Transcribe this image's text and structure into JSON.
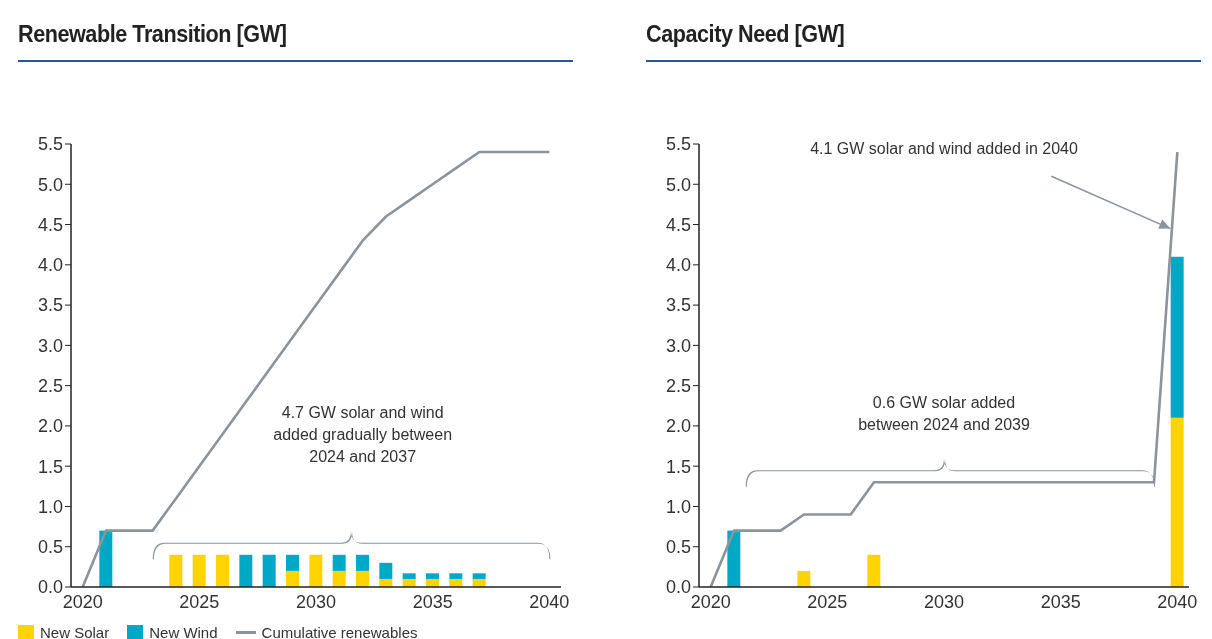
{
  "chart_data": [
    {
      "type": "bar",
      "title": "Renewable Transition [GW]",
      "stacked": true,
      "x": [
        2020,
        2021,
        2022,
        2023,
        2024,
        2025,
        2026,
        2027,
        2028,
        2029,
        2030,
        2031,
        2032,
        2033,
        2034,
        2035,
        2036,
        2037,
        2038,
        2039,
        2040
      ],
      "series": [
        {
          "name": "New Solar",
          "color": "#ffd400",
          "values": [
            null,
            null,
            null,
            null,
            0.4,
            0.4,
            0.4,
            null,
            null,
            0.2,
            0.4,
            0.2,
            0.2,
            0.1,
            0.1,
            0.1,
            0.1,
            0.1,
            null,
            null,
            null
          ]
        },
        {
          "name": "New Wind",
          "color": "#00a8c8",
          "values": [
            null,
            0.7,
            null,
            null,
            null,
            null,
            null,
            0.4,
            0.4,
            0.2,
            null,
            0.2,
            0.2,
            0.2,
            0.07,
            0.07,
            0.07,
            0.07,
            null,
            null,
            null
          ]
        },
        {
          "name": "Cumulative renewables",
          "type": "line",
          "color": "#8c9399",
          "values": [
            0,
            0.7,
            0.7,
            0.7,
            1.1,
            1.5,
            1.9,
            2.3,
            2.7,
            3.1,
            3.5,
            3.9,
            4.3,
            4.6,
            4.8,
            5.0,
            5.2,
            5.4,
            5.4,
            5.4,
            5.4
          ]
        }
      ],
      "xlim": [
        2019.5,
        2040.5
      ],
      "xticks": [
        2020,
        2025,
        2030,
        2035,
        2040
      ],
      "ylim": [
        0,
        5.5
      ],
      "yticks": [
        {
          "value": 0,
          "label": "0.0"
        },
        0.5,
        {
          "value": 1,
          "label": "1.0"
        },
        1.5,
        {
          "value": 2,
          "label": "2.0"
        },
        2.5,
        {
          "value": 3,
          "label": "3.0"
        },
        3.5,
        {
          "value": 4,
          "label": "4.0"
        },
        4.5,
        {
          "value": 5,
          "label": "5.0"
        },
        5.5
      ],
      "grid": false,
      "legend": "bottom",
      "marker": "none",
      "annotations": [
        "4.7 GW solar and wind\nadded gradually between\n2024 and 2037"
      ]
    },
    {
      "type": "bar",
      "title": "Capacity Need [GW]",
      "stacked": true,
      "x": [
        2020,
        2021,
        2022,
        2023,
        2024,
        2025,
        2026,
        2027,
        2028,
        2029,
        2030,
        2031,
        2032,
        2033,
        2034,
        2035,
        2036,
        2037,
        2038,
        2039,
        2040
      ],
      "series": [
        {
          "color": "#ffd400",
          "values": [
            null,
            null,
            null,
            null,
            0.2,
            null,
            null,
            0.4,
            null,
            null,
            null,
            null,
            null,
            null,
            null,
            null,
            null,
            null,
            null,
            null,
            2.1
          ]
        },
        {
          "color": "#00a8c8",
          "values": [
            null,
            0.7,
            null,
            null,
            null,
            null,
            null,
            null,
            null,
            null,
            null,
            null,
            null,
            null,
            null,
            null,
            null,
            null,
            null,
            null,
            2.0
          ]
        },
        {
          "type": "line",
          "color": "#8c9399",
          "values": [
            0,
            0.7,
            0.7,
            0.7,
            0.9,
            0.9,
            0.9,
            1.3,
            1.3,
            1.3,
            1.3,
            1.3,
            1.3,
            1.3,
            1.3,
            1.3,
            1.3,
            1.3,
            1.3,
            1.3,
            5.4
          ]
        }
      ],
      "xlim": [
        2019.5,
        2040.5
      ],
      "xticks": [
        2020,
        2025,
        2030,
        2035,
        2040
      ],
      "ylim": [
        0,
        5.5
      ],
      "yticks": [
        {
          "value": 0,
          "label": "0.0"
        },
        0.5,
        {
          "value": 1,
          "label": "1.0"
        },
        1.5,
        {
          "value": 2,
          "label": "2.0"
        },
        2.5,
        {
          "value": 3,
          "label": "3.0"
        },
        3.5,
        {
          "value": 4,
          "label": "4.0"
        },
        4.5,
        {
          "value": 5,
          "label": "5.0"
        },
        5.5
      ],
      "grid": false,
      "marker": "none",
      "annotations": [
        {
          "text": "4.1 GW solar and wind added in 2040",
          "x": 2039.7,
          "y": 4.45
        },
        "0.6 GW solar added\nbetween 2024 and 2039"
      ]
    }
  ]
}
